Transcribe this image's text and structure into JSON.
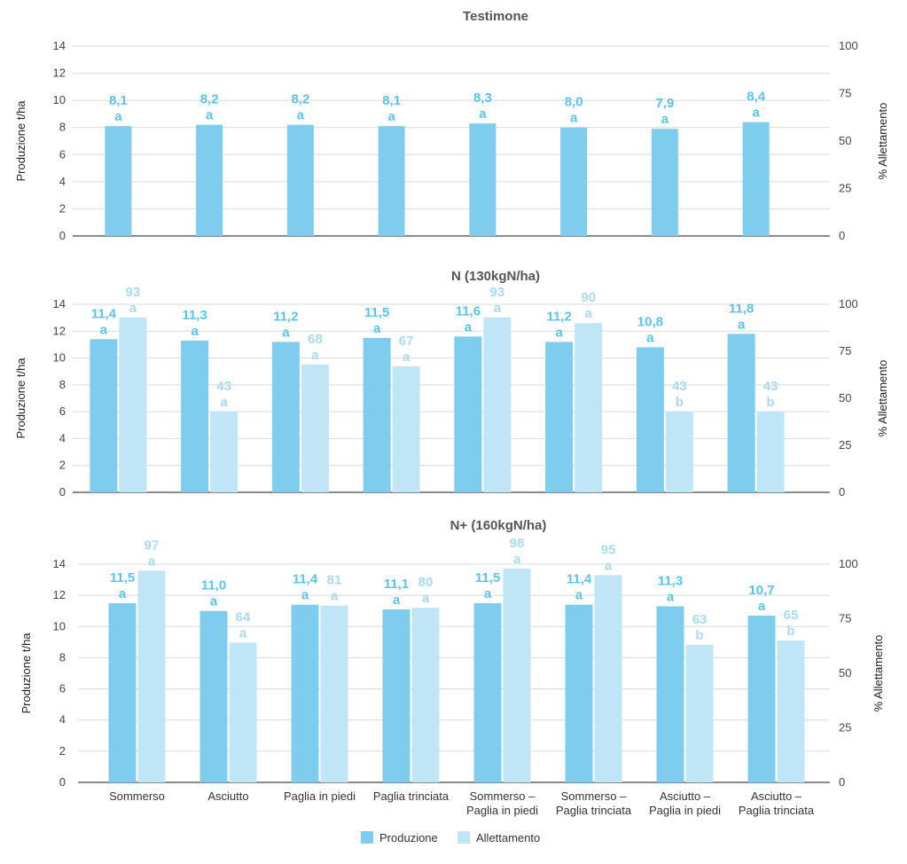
{
  "colors": {
    "produzione": "#7ecdee",
    "allettamento": "#bfe5f6",
    "grid": "#d9d9d9",
    "axis": "#444444",
    "label_prod": "#5bc3ef",
    "label_all": "#a9daf1"
  },
  "legend": {
    "produzione": "Produzione",
    "allettamento": "Allettamento"
  },
  "chart_data": [
    {
      "type": "bar",
      "title": "Testimone",
      "ylabel": "Produzione t/ha",
      "y2label": "% Allettamento",
      "ylim": [
        0,
        14
      ],
      "y2lim": [
        0,
        100
      ],
      "yticks": [
        "0",
        "2",
        "4",
        "6",
        "8",
        "10",
        "12",
        "14"
      ],
      "y2ticks": [
        "0",
        "25",
        "50",
        "75",
        "100"
      ],
      "categories": [
        "Sommerso",
        "Asciutto",
        "Paglia in piedi",
        "Paglia trinciata",
        "Sommerso – Paglia in piedi",
        "Sommerso – Paglia trinciata",
        "Asciutto – Paglia in piedi",
        "Asciutto – Paglia trinciata"
      ],
      "series": [
        {
          "name": "Produzione",
          "axis": "left",
          "values": [
            8.1,
            8.2,
            8.2,
            8.1,
            8.3,
            8.0,
            7.9,
            8.4
          ],
          "labels": [
            "8,1",
            "8,2",
            "8,2",
            "8,1",
            "8,3",
            "8,0",
            "7,9",
            "8,4"
          ],
          "letters": [
            "a",
            "a",
            "a",
            "a",
            "a",
            "a",
            "a",
            "a"
          ]
        }
      ]
    },
    {
      "type": "bar",
      "title": "N (130kgN/ha)",
      "ylabel": "Produzione t/ha",
      "y2label": "% Allettamento",
      "ylim": [
        0,
        14
      ],
      "y2lim": [
        0,
        100
      ],
      "yticks": [
        "0",
        "2",
        "4",
        "6",
        "8",
        "10",
        "12",
        "14"
      ],
      "y2ticks": [
        "0",
        "25",
        "50",
        "75",
        "100"
      ],
      "categories": [
        "Sommerso",
        "Asciutto",
        "Paglia in piedi",
        "Paglia trinciata",
        "Sommerso – Paglia in piedi",
        "Sommerso – Paglia trinciata",
        "Asciutto – Paglia in piedi",
        "Asciutto – Paglia trinciata"
      ],
      "series": [
        {
          "name": "Produzione",
          "axis": "left",
          "values": [
            11.4,
            11.3,
            11.2,
            11.5,
            11.6,
            11.2,
            10.8,
            11.8
          ],
          "labels": [
            "11,4",
            "11,3",
            "11,2",
            "11,5",
            "11,6",
            "11,2",
            "10,8",
            "11,8"
          ],
          "letters": [
            "a",
            "a",
            "a",
            "a",
            "a",
            "a",
            "a",
            "a"
          ]
        },
        {
          "name": "Allettamento",
          "axis": "right",
          "values": [
            93,
            43,
            68,
            67,
            93,
            90,
            43,
            43
          ],
          "labels": [
            "93",
            "43",
            "68",
            "67",
            "93",
            "90",
            "43",
            "43"
          ],
          "letters": [
            "a",
            "a",
            "a",
            "a",
            "a",
            "a",
            "b",
            "b"
          ]
        }
      ]
    },
    {
      "type": "bar",
      "title": "N+ (160kgN/ha)",
      "ylabel": "Produzione t/ha",
      "y2label": "% Allettamento",
      "ylim": [
        0,
        14
      ],
      "y2lim": [
        0,
        100
      ],
      "yticks": [
        "0",
        "2",
        "4",
        "6",
        "8",
        "10",
        "12",
        "14"
      ],
      "y2ticks": [
        "0",
        "25",
        "50",
        "75",
        "100"
      ],
      "categories": [
        "Sommerso",
        "Asciutto",
        "Paglia in piedi",
        "Paglia trinciata",
        "Sommerso – Paglia in piedi",
        "Sommerso – Paglia trinciata",
        "Asciutto – Paglia in piedi",
        "Asciutto – Paglia trinciata"
      ],
      "category_lines": [
        [
          "Sommerso"
        ],
        [
          "Asciutto"
        ],
        [
          "Paglia in piedi"
        ],
        [
          "Paglia trinciata"
        ],
        [
          "Sommerso –",
          "Paglia in piedi"
        ],
        [
          "Sommerso –",
          "Paglia trinciata"
        ],
        [
          "Asciutto –",
          "Paglia in piedi"
        ],
        [
          "Asciutto –",
          "Paglia trinciata"
        ]
      ],
      "series": [
        {
          "name": "Produzione",
          "axis": "left",
          "values": [
            11.5,
            11.0,
            11.4,
            11.1,
            11.5,
            11.4,
            11.3,
            10.7
          ],
          "labels": [
            "11,5",
            "11,0",
            "11,4",
            "11,1",
            "11,5",
            "11,4",
            "11,3",
            "10,7"
          ],
          "letters": [
            "a",
            "a",
            "a",
            "a",
            "a",
            "a",
            "a",
            "a"
          ]
        },
        {
          "name": "Allettamento",
          "axis": "right",
          "values": [
            97,
            64,
            81,
            80,
            98,
            95,
            63,
            65
          ],
          "labels": [
            "97",
            "64",
            "81",
            "80",
            "98",
            "95",
            "63",
            "65"
          ],
          "letters": [
            "a",
            "a",
            "a",
            "a",
            "a",
            "a",
            "b",
            "b"
          ]
        }
      ]
    }
  ]
}
